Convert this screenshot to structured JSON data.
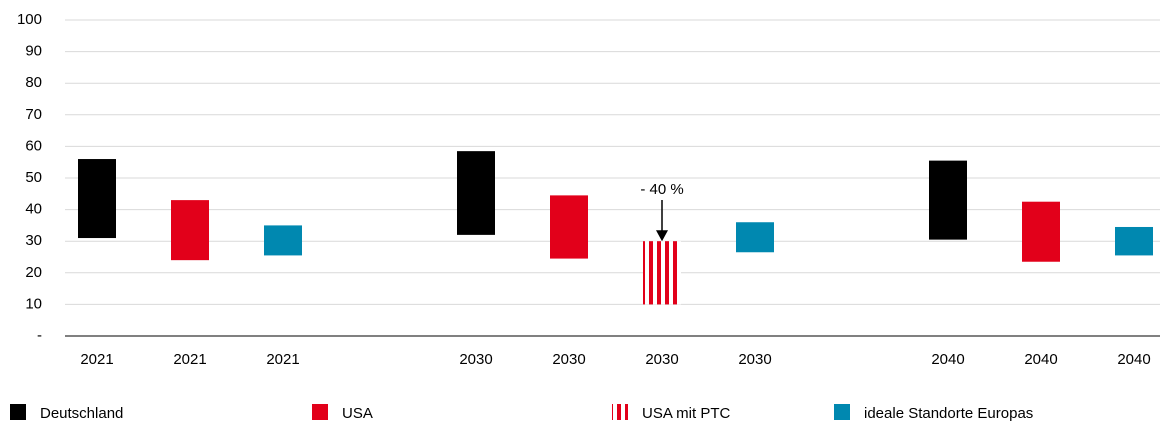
{
  "chart_data": {
    "type": "floating-bar",
    "categories": [
      "2021",
      "2021",
      "2021",
      "2030",
      "2030",
      "2030",
      "2030",
      "2040",
      "2040",
      "2040"
    ],
    "series": [
      {
        "name": "Deutschland",
        "color": "#000000",
        "hatch": false,
        "low": [
          31,
          null,
          null,
          32,
          null,
          null,
          null,
          30.5,
          null,
          null
        ],
        "high": [
          56,
          null,
          null,
          58.5,
          null,
          null,
          null,
          55.5,
          null,
          null
        ]
      },
      {
        "name": "USA",
        "color": "#e2001a",
        "hatch": false,
        "low": [
          null,
          24,
          null,
          null,
          24.5,
          null,
          null,
          null,
          23.5,
          null
        ],
        "high": [
          null,
          43,
          null,
          null,
          44.5,
          null,
          null,
          null,
          42.5,
          null
        ]
      },
      {
        "name": "USA mit PTC",
        "color": "#e2001a",
        "hatch": true,
        "low": [
          null,
          null,
          null,
          null,
          null,
          10,
          null,
          null,
          null,
          null
        ],
        "high": [
          null,
          null,
          null,
          null,
          null,
          30,
          null,
          null,
          null,
          null
        ]
      },
      {
        "name": "ideale Standorte Europas",
        "color": "#0088b0",
        "hatch": false,
        "low": [
          null,
          null,
          25.5,
          null,
          null,
          null,
          26.5,
          null,
          null,
          25.5
        ],
        "high": [
          null,
          null,
          35,
          null,
          null,
          null,
          36,
          null,
          null,
          34.5
        ]
      }
    ],
    "annotation": "- 40 %",
    "ylim": [
      0,
      100
    ],
    "yticks": [
      {
        "value": 0,
        "label": "-"
      },
      10,
      20,
      30,
      40,
      50,
      60,
      70,
      80,
      90,
      100
    ],
    "grid": true
  }
}
